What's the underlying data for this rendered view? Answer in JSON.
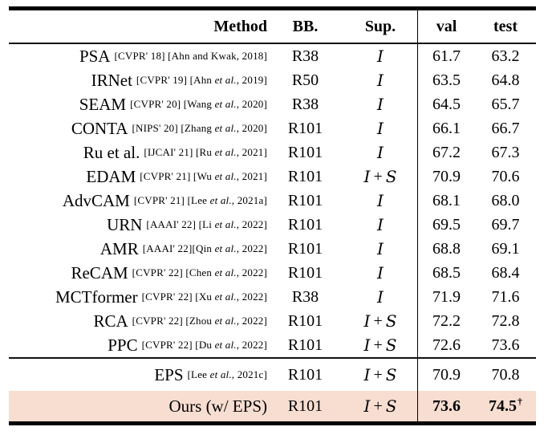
{
  "table": {
    "headers": {
      "method": "Method",
      "bb": "BB.",
      "sup": "Sup.",
      "val": "val",
      "test": "test"
    },
    "rows": [
      {
        "name": "PSA",
        "cite": "[CVPR' 18] [Ahn and Kwak, 2018]",
        "bb": "R38",
        "sup": "I",
        "val": "61.7",
        "test": "63.2"
      },
      {
        "name": "IRNet",
        "cite": "[CVPR' 19] [Ahn et al., 2019]",
        "bb": "R50",
        "sup": "I",
        "val": "63.5",
        "test": "64.8"
      },
      {
        "name": "SEAM",
        "cite": "[CVPR' 20] [Wang et al., 2020]",
        "bb": "R38",
        "sup": "I",
        "val": "64.5",
        "test": "65.7"
      },
      {
        "name": "CONTA",
        "cite": "[NIPS' 20] [Zhang et al., 2020]",
        "bb": "R101",
        "sup": "I",
        "val": "66.1",
        "test": "66.7"
      },
      {
        "name": "Ru et al.",
        "cite": "[IJCAI' 21] [Ru et al., 2021]",
        "bb": "R101",
        "sup": "I",
        "val": "67.2",
        "test": "67.3"
      },
      {
        "name": "EDAM",
        "cite": "[CVPR' 21] [Wu et al., 2021]",
        "bb": "R101",
        "sup": "I + S",
        "val": "70.9",
        "test": "70.6"
      },
      {
        "name": "AdvCAM",
        "cite": "[CVPR' 21] [Lee et al., 2021a]",
        "bb": "R101",
        "sup": "I",
        "val": "68.1",
        "test": "68.0"
      },
      {
        "name": "URN",
        "cite": "[AAAI' 22] [Li et al., 2022]",
        "bb": "R101",
        "sup": "I",
        "val": "69.5",
        "test": "69.7"
      },
      {
        "name": "AMR",
        "cite": "[AAAI' 22][Qin et al., 2022]",
        "bb": "R101",
        "sup": "I",
        "val": "68.8",
        "test": "69.1"
      },
      {
        "name": "ReCAM",
        "cite": "[CVPR' 22] [Chen et al., 2022]",
        "bb": "R101",
        "sup": "I",
        "val": "68.5",
        "test": "68.4"
      },
      {
        "name": "MCTformer",
        "cite": "[CVPR' 22] [Xu et al., 2022]",
        "bb": "R38",
        "sup": "I",
        "val": "71.9",
        "test": "71.6"
      },
      {
        "name": "RCA",
        "cite": "[CVPR' 22] [Zhou et al., 2022]",
        "bb": "R101",
        "sup": "I + S",
        "val": "72.2",
        "test": "72.8"
      },
      {
        "name": "PPC",
        "cite": "[CVPR' 22] [Du et al., 2022]",
        "bb": "R101",
        "sup": "I + S",
        "val": "72.6",
        "test": "73.6"
      }
    ],
    "footer_rows": [
      {
        "name": "EPS",
        "cite": "[Lee et al., 2021c]",
        "bb": "R101",
        "sup": "I + S",
        "val": "70.9",
        "test": "70.8",
        "dagger": "",
        "highlight": false,
        "bold": false
      },
      {
        "name": "Ours (w/ EPS)",
        "cite": "",
        "bb": "R101",
        "sup": "I + S",
        "val": "73.6",
        "test": "74.5",
        "dagger": "†",
        "highlight": true,
        "bold": true
      }
    ]
  },
  "colors": {
    "highlight": "#f7ded1",
    "rule": "#000000",
    "text": "#000000"
  }
}
